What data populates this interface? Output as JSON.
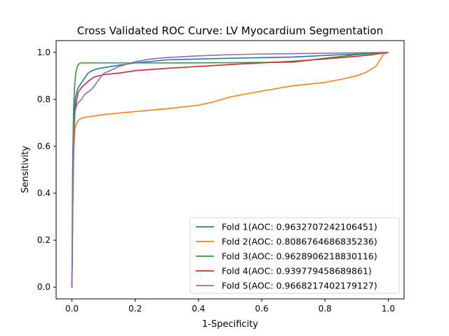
{
  "chart_data": {
    "type": "line",
    "title": "Cross Validated ROC Curve: LV Myocardium Segmentation",
    "xlabel": "1-Specificity",
    "ylabel": "Sensitivity",
    "xlim": [
      -0.05,
      1.05
    ],
    "ylim": [
      -0.05,
      1.05
    ],
    "xticks": [
      "0.0",
      "0.2",
      "0.4",
      "0.6",
      "0.8",
      "1.0"
    ],
    "yticks": [
      "0.0",
      "0.2",
      "0.4",
      "0.6",
      "0.8",
      "1.0"
    ],
    "grid": false,
    "legend_position": "bottom-right",
    "series": [
      {
        "name": "Fold 1(AOC: 0.9632707242106451)",
        "color": "#1f77b4",
        "x": [
          0.0,
          0.003,
          0.006,
          0.01,
          0.015,
          0.02,
          0.03,
          0.04,
          0.05,
          0.06,
          0.08,
          0.1,
          0.15,
          0.2,
          0.3,
          0.5,
          0.7,
          0.85,
          0.95,
          1.0
        ],
        "y": [
          0.0,
          0.5,
          0.72,
          0.8,
          0.83,
          0.85,
          0.87,
          0.89,
          0.91,
          0.92,
          0.93,
          0.935,
          0.945,
          0.955,
          0.968,
          0.975,
          0.98,
          0.99,
          0.995,
          1.0
        ]
      },
      {
        "name": "Fold 2(AOC: 0.8086764686835236)",
        "color": "#ff7f0e",
        "x": [
          0.0,
          0.003,
          0.006,
          0.01,
          0.015,
          0.02,
          0.03,
          0.05,
          0.1,
          0.2,
          0.3,
          0.4,
          0.45,
          0.5,
          0.6,
          0.7,
          0.8,
          0.85,
          0.9,
          0.93,
          0.96,
          0.975,
          0.985,
          1.0
        ],
        "y": [
          0.0,
          0.35,
          0.6,
          0.68,
          0.7,
          0.71,
          0.72,
          0.725,
          0.735,
          0.748,
          0.76,
          0.775,
          0.79,
          0.81,
          0.835,
          0.858,
          0.872,
          0.885,
          0.9,
          0.915,
          0.94,
          0.97,
          0.992,
          1.0
        ]
      },
      {
        "name": "Fold 3(AOC: 0.9628906218830116)",
        "color": "#2ca02c",
        "x": [
          0.0,
          0.002,
          0.005,
          0.008,
          0.012,
          0.016,
          0.02,
          0.025,
          0.03,
          0.1,
          0.3,
          0.5,
          0.7,
          0.8,
          0.9,
          1.0
        ],
        "y": [
          0.0,
          0.5,
          0.75,
          0.85,
          0.91,
          0.935,
          0.948,
          0.953,
          0.955,
          0.955,
          0.955,
          0.956,
          0.958,
          0.975,
          0.99,
          1.0
        ]
      },
      {
        "name": "Fold 4(AOC: 0.939779458689861)",
        "color": "#d62728",
        "x": [
          0.0,
          0.003,
          0.006,
          0.01,
          0.015,
          0.02,
          0.03,
          0.05,
          0.07,
          0.1,
          0.15,
          0.2,
          0.3,
          0.4,
          0.5,
          0.6,
          0.7,
          0.8,
          0.9,
          0.95,
          1.0
        ],
        "y": [
          0.0,
          0.4,
          0.65,
          0.75,
          0.8,
          0.83,
          0.85,
          0.875,
          0.895,
          0.905,
          0.912,
          0.922,
          0.932,
          0.94,
          0.948,
          0.955,
          0.962,
          0.972,
          0.983,
          0.99,
          1.0
        ]
      },
      {
        "name": "Fold 5(AOC: 0.9668217402179127)",
        "color": "#9467bd",
        "x": [
          0.0,
          0.003,
          0.006,
          0.01,
          0.015,
          0.02,
          0.03,
          0.04,
          0.05,
          0.06,
          0.07,
          0.08,
          0.1,
          0.15,
          0.2,
          0.25,
          0.3,
          0.4,
          0.5,
          0.6,
          0.8,
          1.0
        ],
        "y": [
          0.0,
          0.4,
          0.65,
          0.75,
          0.775,
          0.785,
          0.8,
          0.82,
          0.83,
          0.84,
          0.855,
          0.875,
          0.91,
          0.94,
          0.96,
          0.972,
          0.978,
          0.985,
          0.99,
          0.993,
          0.996,
          1.0
        ]
      }
    ]
  }
}
